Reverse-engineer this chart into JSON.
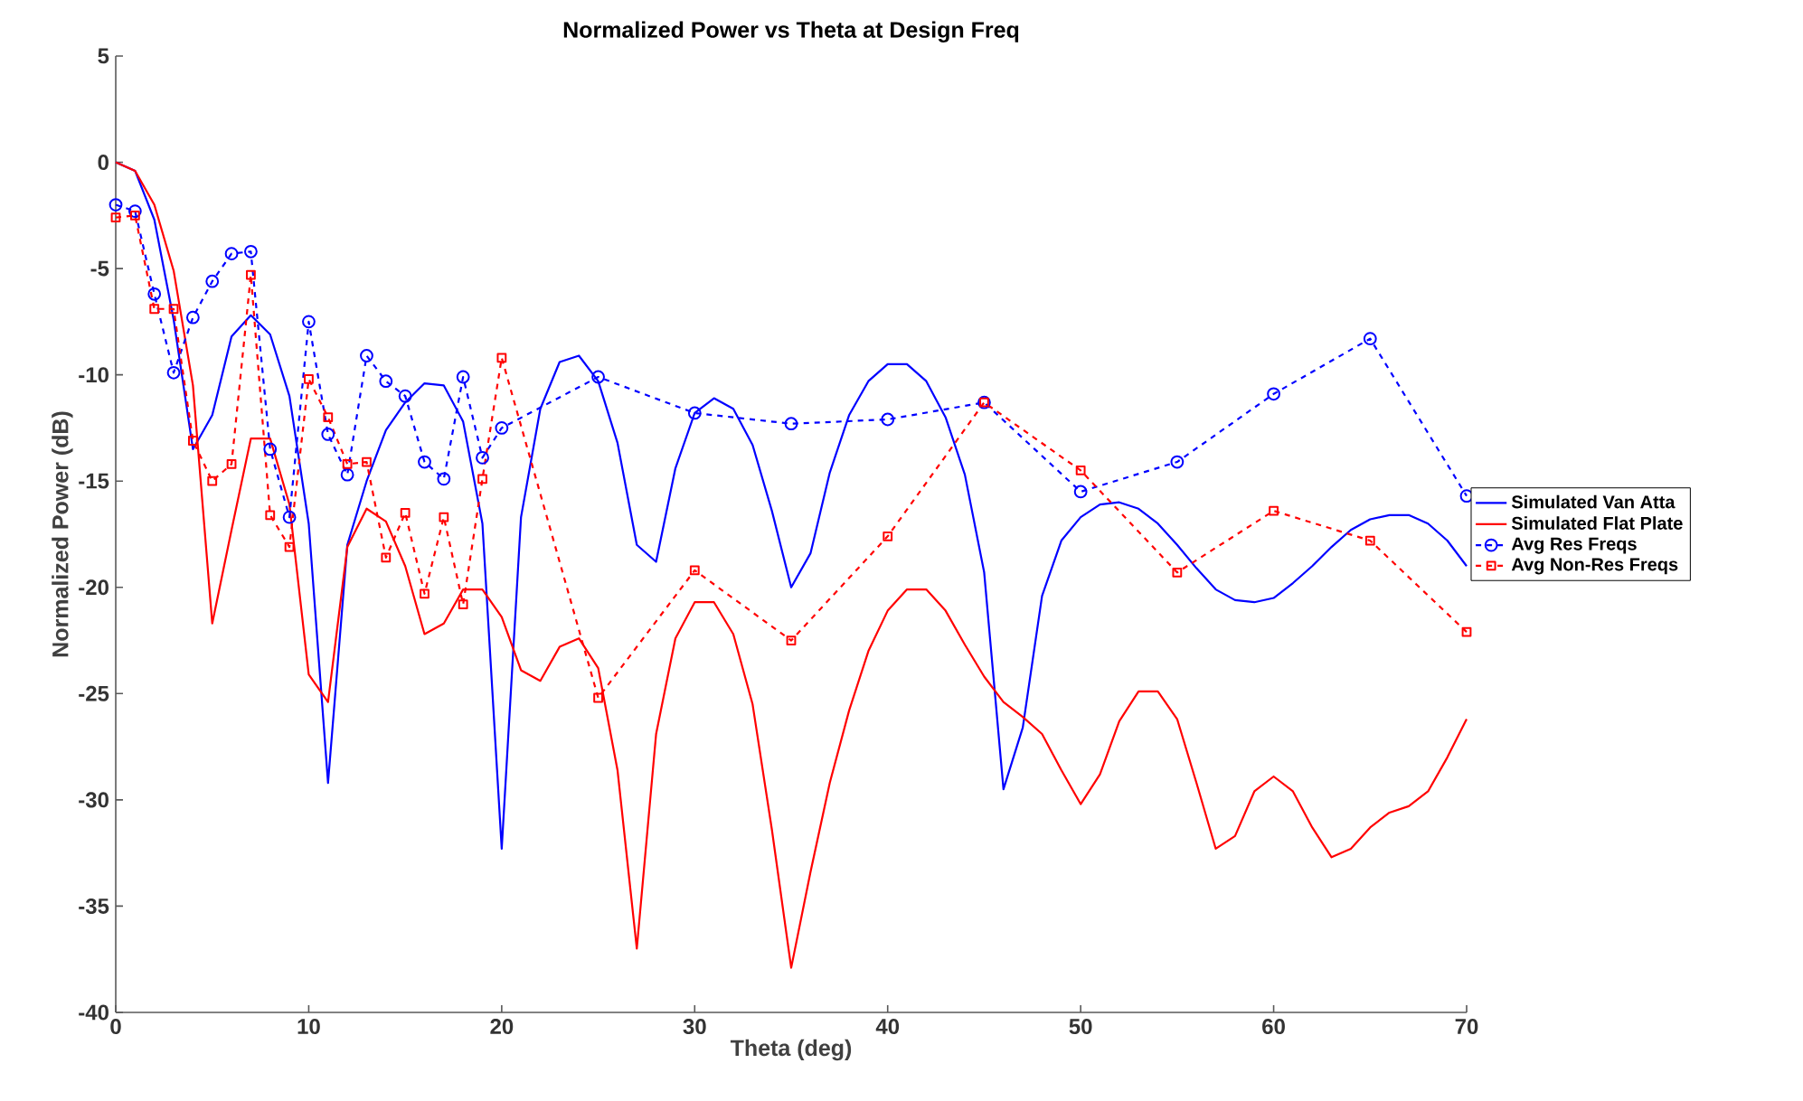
{
  "chart_data": {
    "type": "line",
    "title": "Normalized Power vs Theta at Design Freq",
    "xlabel": "Theta (deg)",
    "ylabel": "Normalized Power (dB)",
    "xlim": [
      0,
      70
    ],
    "xticks": [
      0,
      10,
      20,
      30,
      40,
      50,
      60,
      70
    ],
    "ylim": [
      -40,
      5
    ],
    "yticks": [
      -40,
      -35,
      -30,
      -25,
      -20,
      -15,
      -10,
      -5,
      0,
      5
    ],
    "grid": false,
    "legend": "right",
    "series": [
      {
        "name": "Simulated Van Atta",
        "color": "#0000ff",
        "line_style": "solid",
        "marker": "none",
        "x": [
          0,
          1,
          2,
          3,
          4,
          5,
          6,
          7,
          8,
          9,
          10,
          11,
          12,
          13,
          14,
          15,
          16,
          17,
          18,
          19,
          20,
          21,
          22,
          23,
          24,
          25,
          26,
          27,
          28,
          29,
          30,
          31,
          32,
          33,
          34,
          35,
          36,
          37,
          38,
          39,
          40,
          41,
          42,
          43,
          44,
          45,
          46,
          47,
          48,
          49,
          50,
          51,
          52,
          53,
          54,
          55,
          56,
          57,
          58,
          59,
          60,
          61,
          62,
          63,
          64,
          65,
          66,
          67,
          68,
          69,
          70
        ],
        "values": [
          0,
          -0.4,
          -2.7,
          -7.4,
          -13.5,
          -11.9,
          -8.2,
          -7.2,
          -8.1,
          -11.0,
          -17,
          -29.2,
          -18,
          -15,
          -12.6,
          -11.3,
          -10.4,
          -10.5,
          -12.2,
          -17,
          -32.3,
          -16.7,
          -11.6,
          -9.4,
          -9.1,
          -10.3,
          -13.2,
          -18,
          -18.8,
          -14.4,
          -11.8,
          -11.1,
          -11.6,
          -13.3,
          -16.4,
          -20,
          -18.4,
          -14.6,
          -11.9,
          -10.3,
          -9.5,
          -9.5,
          -10.3,
          -12,
          -14.7,
          -19.3,
          -29.5,
          -26.6,
          -20.4,
          -17.8,
          -16.7,
          -16.1,
          -16,
          -16.3,
          -17,
          -18,
          -19.1,
          -20.1,
          -20.6,
          -20.7,
          -20.5,
          -19.8,
          -19,
          -18.1,
          -17.3,
          -16.8,
          -16.6,
          -16.6,
          -17,
          -17.8,
          -19
        ]
      },
      {
        "name": "Simulated Flat Plate",
        "color": "#ff0000",
        "line_style": "solid",
        "marker": "none",
        "x": [
          0,
          1,
          2,
          3,
          4,
          5,
          6,
          7,
          8,
          9,
          10,
          11,
          12,
          13,
          14,
          15,
          16,
          17,
          18,
          19,
          20,
          21,
          22,
          23,
          24,
          25,
          26,
          27,
          28,
          29,
          30,
          31,
          32,
          33,
          34,
          35,
          36,
          37,
          38,
          39,
          40,
          41,
          42,
          43,
          44,
          45,
          46,
          47,
          48,
          49,
          50,
          51,
          52,
          53,
          54,
          55,
          56,
          57,
          58,
          59,
          60,
          61,
          62,
          63,
          64,
          65,
          66,
          67,
          68,
          69,
          70
        ],
        "values": [
          0,
          -0.4,
          -2,
          -5.1,
          -10.5,
          -21.7,
          -17.3,
          -13,
          -13,
          -16.1,
          -24.1,
          -25.4,
          -18.1,
          -16.3,
          -16.9,
          -19,
          -22.2,
          -21.7,
          -20.1,
          -20.1,
          -21.4,
          -23.9,
          -24.4,
          -22.8,
          -22.4,
          -23.8,
          -28.6,
          -37,
          -26.9,
          -22.4,
          -20.7,
          -20.7,
          -22.2,
          -25.5,
          -31.4,
          -37.9,
          -33.4,
          -29.2,
          -25.8,
          -23,
          -21.1,
          -20.1,
          -20.1,
          -21.1,
          -22.7,
          -24.2,
          -25.4,
          -26.1,
          -26.9,
          -28.6,
          -30.2,
          -28.8,
          -26.3,
          -24.9,
          -24.9,
          -26.2,
          -29.2,
          -32.3,
          -31.7,
          -29.6,
          -28.9,
          -29.6,
          -31.3,
          -32.7,
          -32.3,
          -31.3,
          -30.6,
          -30.3,
          -29.6,
          -28,
          -26.2
        ]
      },
      {
        "name": "Avg Res Freqs",
        "color": "#0000ff",
        "line_style": "dashed",
        "marker": "circle",
        "x": [
          0,
          1,
          2,
          3,
          4,
          5,
          6,
          7,
          8,
          9,
          10,
          11,
          12,
          13,
          14,
          15,
          16,
          17,
          18,
          19,
          20,
          25,
          30,
          35,
          40,
          45,
          50,
          55,
          60,
          65,
          70
        ],
        "values": [
          -2.0,
          -2.3,
          -6.2,
          -9.9,
          -7.3,
          -5.6,
          -4.3,
          -4.2,
          -13.5,
          -16.7,
          -7.5,
          -12.8,
          -14.7,
          -9.1,
          -10.3,
          -11,
          -14.1,
          -14.9,
          -10.1,
          -13.9,
          -12.5,
          -10.1,
          -11.8,
          -12.3,
          -12.1,
          -11.3,
          -15.5,
          -14.1,
          -10.9,
          -8.3,
          -15.7
        ]
      },
      {
        "name": "Avg Non-Res Freqs",
        "color": "#ff0000",
        "line_style": "dashed",
        "marker": "square",
        "x": [
          0,
          1,
          2,
          3,
          4,
          5,
          6,
          7,
          8,
          9,
          10,
          11,
          12,
          13,
          14,
          15,
          16,
          17,
          18,
          19,
          20,
          25,
          30,
          35,
          40,
          45,
          50,
          55,
          60,
          65,
          70
        ],
        "values": [
          -2.6,
          -2.5,
          -6.9,
          -6.9,
          -13.1,
          -15,
          -14.2,
          -5.3,
          -16.6,
          -18.1,
          -10.2,
          -12,
          -14.2,
          -14.1,
          -18.6,
          -16.5,
          -20.3,
          -16.7,
          -20.8,
          -14.9,
          -9.2,
          -25.2,
          -19.2,
          -22.5,
          -17.6,
          -11.3,
          -14.5,
          -19.3,
          -16.4,
          -17.8,
          -22.1
        ]
      }
    ]
  }
}
